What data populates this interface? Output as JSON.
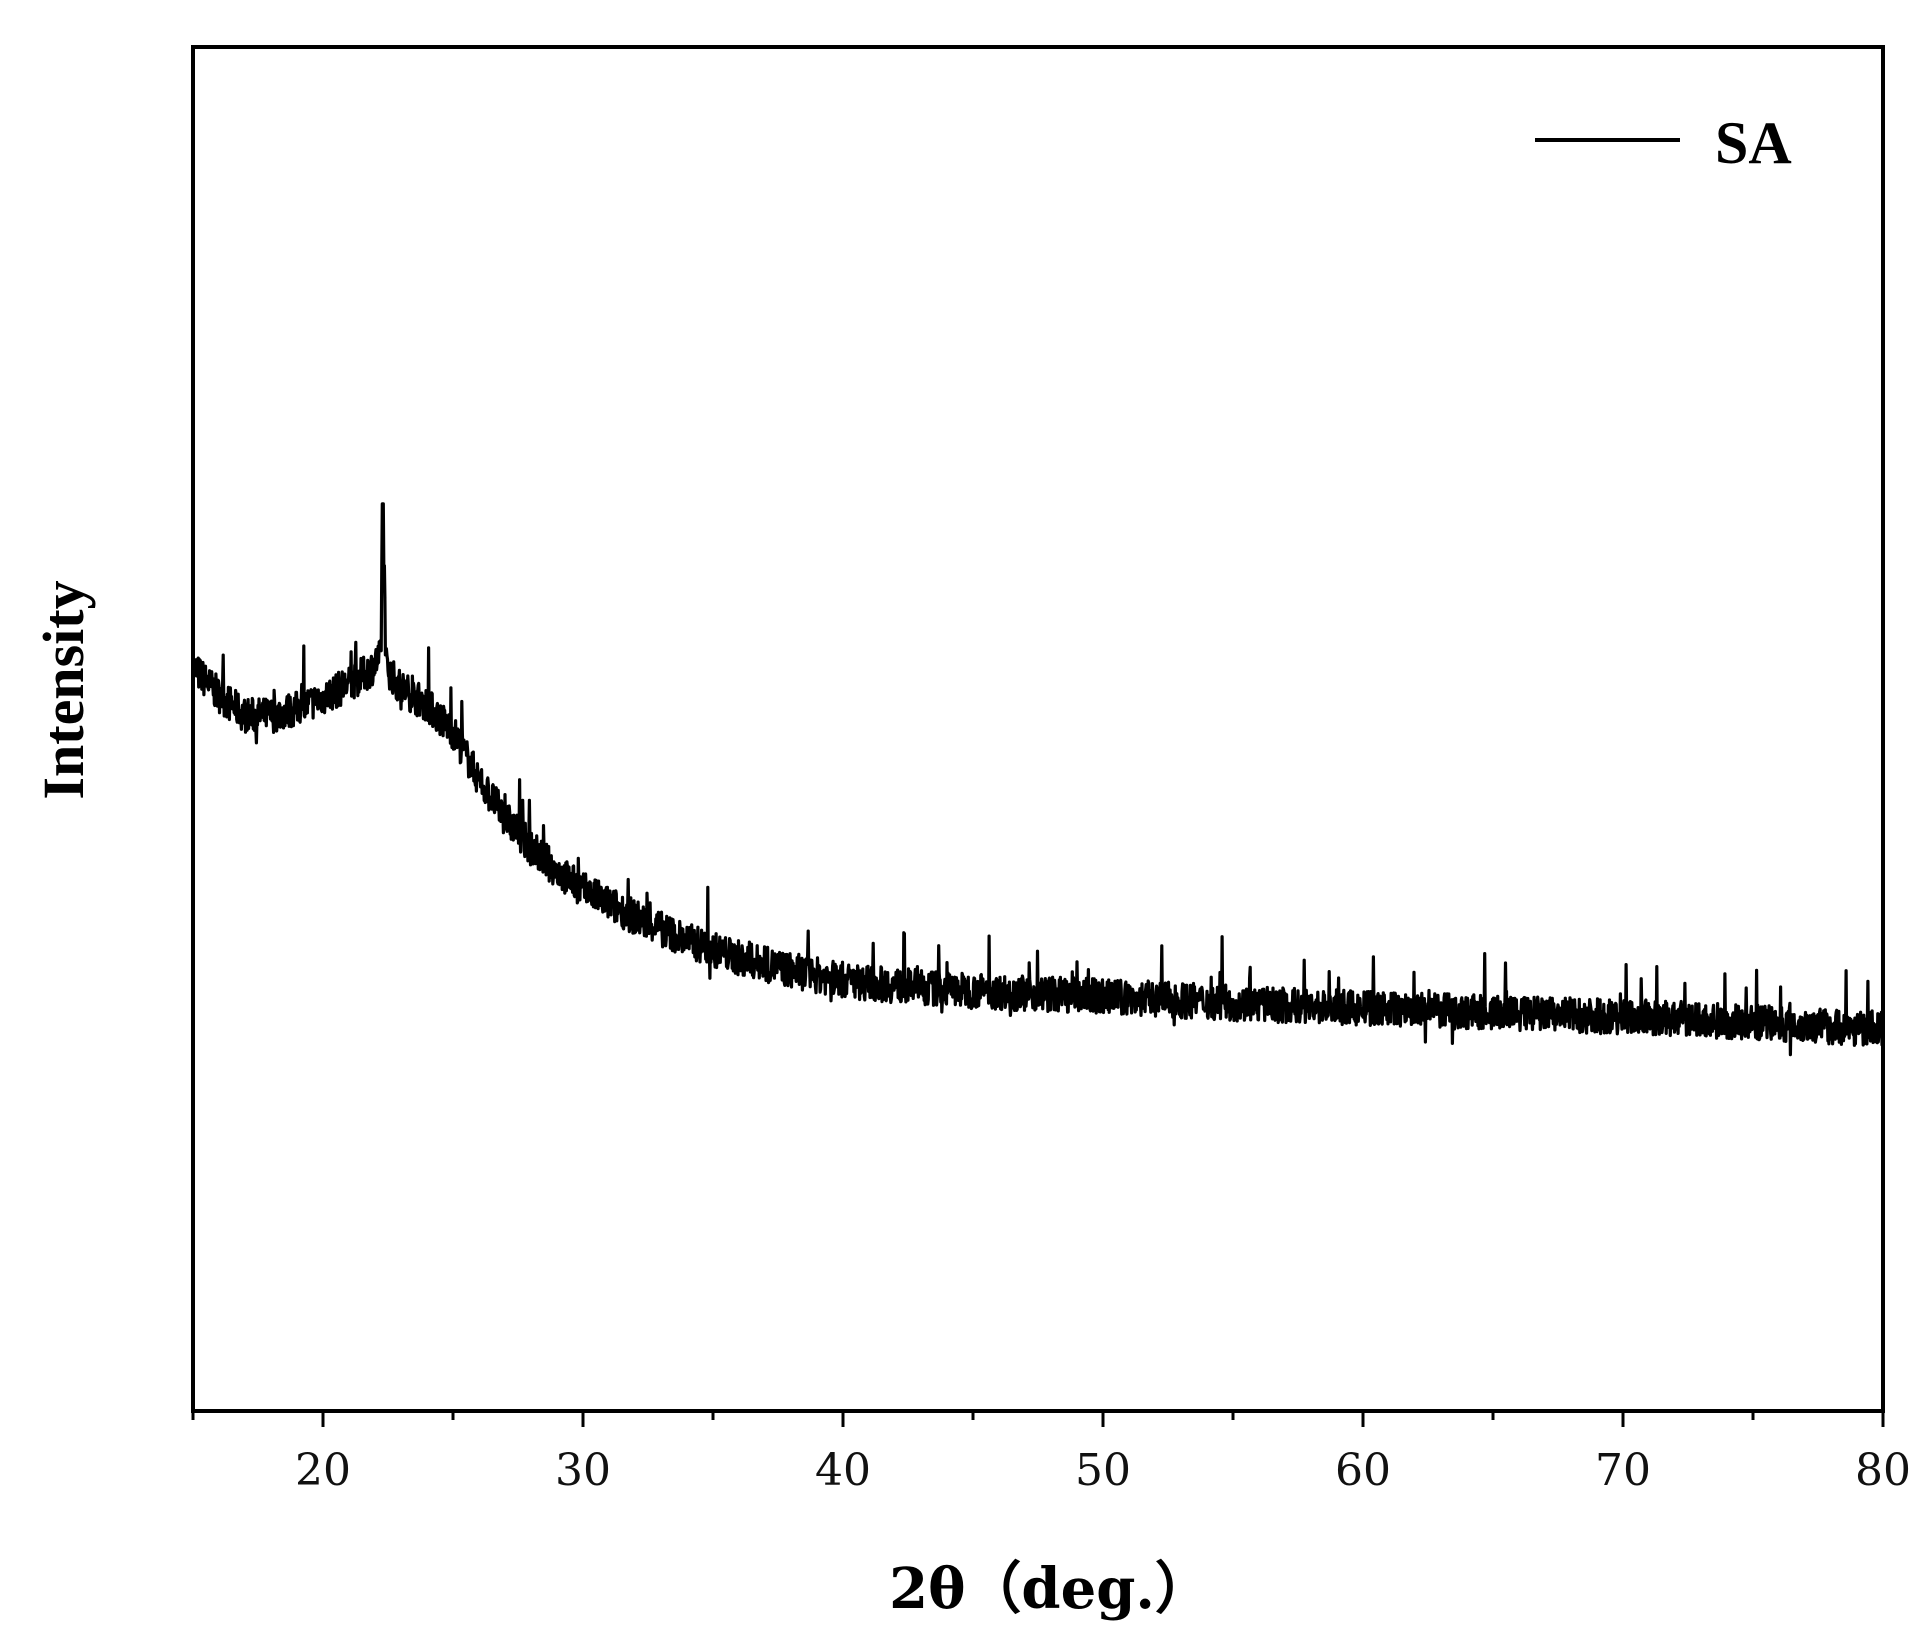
{
  "chart_data": {
    "type": "line",
    "title": "",
    "xlabel": "2θ（deg.）",
    "ylabel": "Intensity",
    "xlim": [
      15,
      80
    ],
    "ylim": [
      0,
      100
    ],
    "x_ticks": [
      20,
      30,
      40,
      50,
      60,
      70,
      80
    ],
    "x_minor_ticks": [
      15,
      25,
      35,
      45,
      55,
      65,
      75
    ],
    "y_tick_labels_shown": false,
    "grid": false,
    "legend": {
      "position": "top-right",
      "entries": [
        "SA"
      ]
    },
    "series": [
      {
        "name": "SA",
        "color": "#000000",
        "x": [
          15,
          16,
          17,
          18,
          19,
          20,
          21,
          21.8,
          22.3,
          22.6,
          23,
          24,
          25,
          26,
          27,
          28,
          29,
          30,
          32,
          34,
          36,
          38,
          40,
          42,
          45,
          50,
          55,
          60,
          65,
          70,
          75,
          80
        ],
        "y": [
          54.5,
          52.5,
          51.0,
          51.0,
          51.5,
          52.3,
          53.3,
          54.3,
          55.5,
          54.0,
          53.0,
          51.8,
          49.8,
          46.3,
          43.5,
          41.3,
          39.6,
          38.2,
          36.2,
          34.5,
          33.2,
          32.3,
          31.6,
          31.2,
          30.8,
          30.4,
          29.9,
          29.5,
          29.2,
          28.9,
          28.5,
          28.0
        ],
        "sharp_peak": {
          "x": 22.3,
          "y": 66.5
        },
        "noise_amplitude": 1.3
      }
    ]
  }
}
